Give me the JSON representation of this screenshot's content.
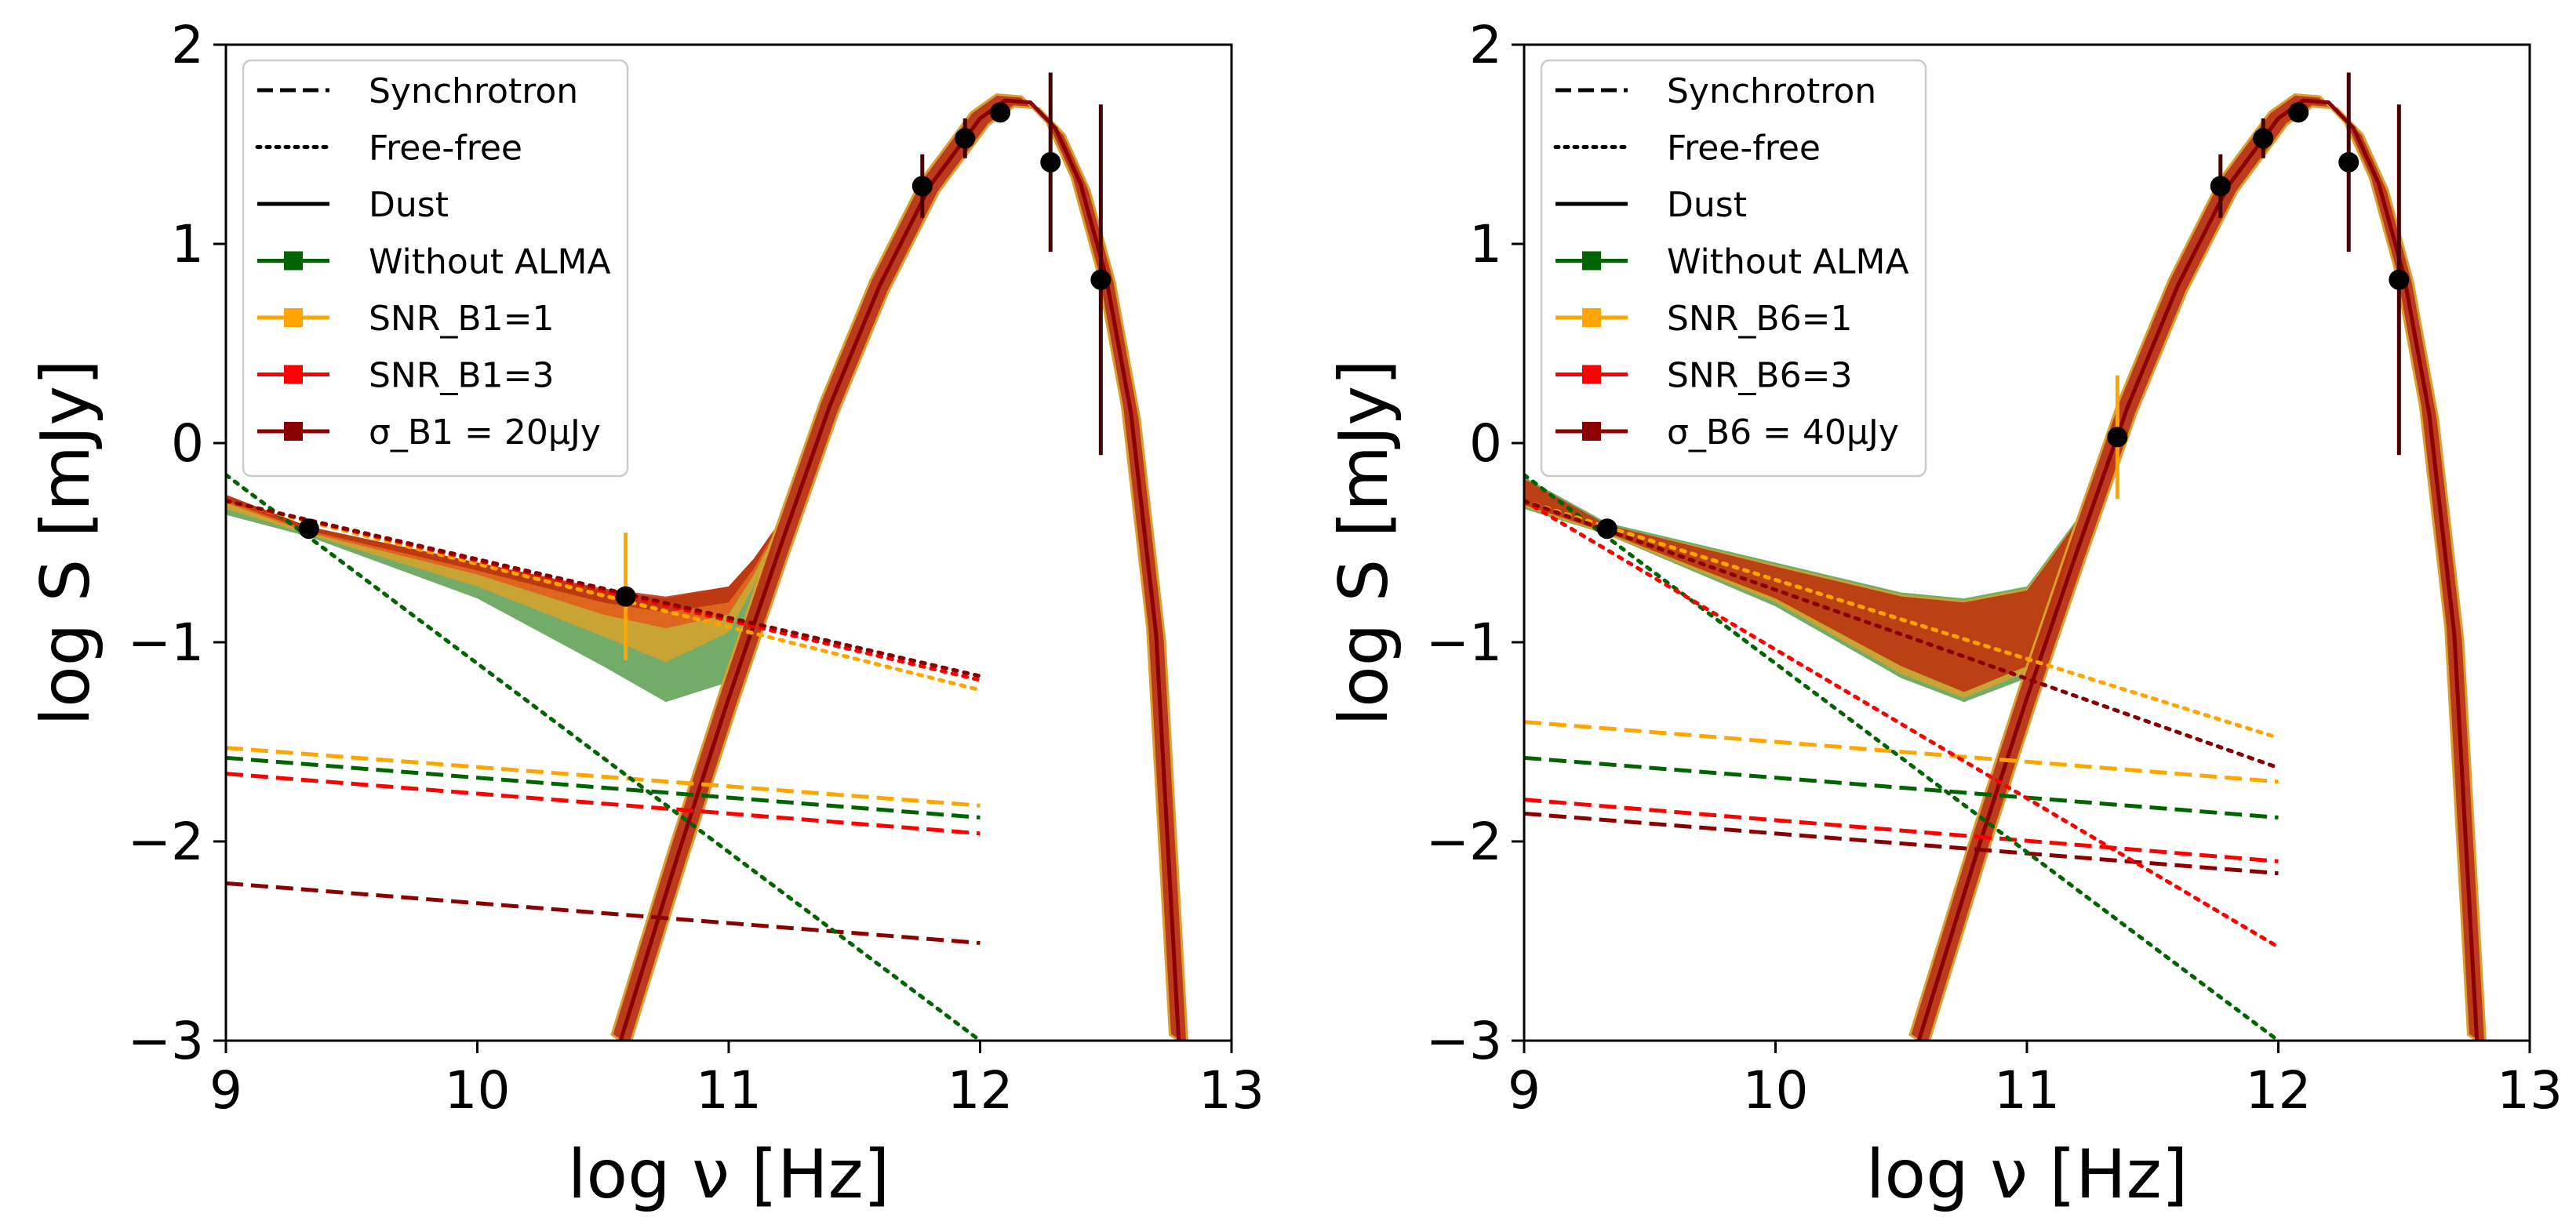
{
  "chart_data": [
    {
      "type": "line",
      "panel": "left",
      "xlabel": "log ν [Hz]",
      "ylabel": "log  S [mJy]",
      "xlim": [
        9,
        13
      ],
      "ylim": [
        -3,
        2
      ],
      "xticks": [
        9,
        10,
        11,
        12,
        13
      ],
      "yticks": [
        -3,
        -2,
        -1,
        0,
        1,
        2
      ],
      "xtick_labels": [
        "9",
        "10",
        "11",
        "12",
        "13"
      ],
      "ytick_labels": [
        "−3",
        "−2",
        "−1",
        "0",
        "1",
        "2"
      ],
      "legend_placement": "upper-left",
      "legend": [
        {
          "label": "Synchrotron",
          "style": "dashed",
          "color": "#000000",
          "marker": false
        },
        {
          "label": "Free-free",
          "style": "dotted",
          "color": "#000000",
          "marker": false
        },
        {
          "label": "Dust",
          "style": "solid",
          "color": "#000000",
          "marker": false
        },
        {
          "label": "Without ALMA",
          "style": "solid",
          "color": "#006400",
          "marker": true
        },
        {
          "label": "SNR_B1=1",
          "style": "solid",
          "color": "#FFA500",
          "marker": true
        },
        {
          "label": "SNR_B1=3",
          "style": "solid",
          "color": "#FF0000",
          "marker": true
        },
        {
          "label": "σ_B1 = 20μJy",
          "style": "solid",
          "color": "#8B0000",
          "marker": true
        }
      ],
      "synchrotron": [
        {
          "name": "Without ALMA",
          "color": "#006400",
          "x": [
            9,
            12
          ],
          "y": [
            -1.58,
            -1.88
          ]
        },
        {
          "name": "SNR_B1=1",
          "color": "#FFA500",
          "x": [
            9,
            12
          ],
          "y": [
            -1.53,
            -1.82
          ]
        },
        {
          "name": "SNR_B1=3",
          "color": "#FF0000",
          "x": [
            9,
            12
          ],
          "y": [
            -1.66,
            -1.96
          ]
        },
        {
          "name": "σ_B1 = 20μJy",
          "color": "#8B0000",
          "x": [
            9,
            12
          ],
          "y": [
            -2.21,
            -2.51
          ]
        }
      ],
      "free_free": [
        {
          "name": "Without ALMA",
          "color": "#006400",
          "x": [
            9,
            12
          ],
          "y": [
            -0.16,
            -3.0
          ]
        },
        {
          "name": "SNR_B1=1",
          "color": "#FFA500",
          "x": [
            9,
            12
          ],
          "y": [
            -0.29,
            -1.24
          ]
        },
        {
          "name": "SNR_B1=3",
          "color": "#FF0000",
          "x": [
            9,
            12
          ],
          "y": [
            -0.29,
            -1.19
          ]
        },
        {
          "name": "σ_B1 = 20μJy",
          "color": "#8B0000",
          "x": [
            9,
            12
          ],
          "y": [
            -0.29,
            -1.17
          ]
        }
      ],
      "dust": {
        "x": [
          10.57,
          10.8,
          11.0,
          11.2,
          11.4,
          11.6,
          11.8,
          12.0,
          12.1,
          12.2,
          12.3,
          12.4,
          12.5,
          12.6,
          12.7,
          12.79
        ],
        "y": [
          -3.0,
          -2.06,
          -1.28,
          -0.54,
          0.18,
          0.79,
          1.29,
          1.63,
          1.72,
          1.71,
          1.58,
          1.3,
          0.84,
          0.15,
          -0.96,
          -3.0
        ],
        "color": "#8B0000"
      },
      "total_bands": [
        {
          "name": "Without ALMA",
          "color": "#5a9e4e",
          "x": [
            9.0,
            9.33,
            10.0,
            10.5,
            10.75,
            11.0,
            11.1,
            11.2
          ],
          "upper": [
            -0.26,
            -0.42,
            -0.6,
            -0.74,
            -0.78,
            -0.72,
            -0.58,
            -0.4
          ],
          "lower": [
            -0.36,
            -0.47,
            -0.78,
            -1.12,
            -1.3,
            -1.2,
            -0.9,
            -0.44
          ]
        },
        {
          "name": "SNR_B1=1",
          "color": "#d6a22b",
          "x": [
            9.0,
            9.33,
            10.0,
            10.5,
            10.75,
            11.0,
            11.1,
            11.2
          ],
          "upper": [
            -0.26,
            -0.42,
            -0.6,
            -0.74,
            -0.78,
            -0.72,
            -0.58,
            -0.4
          ],
          "lower": [
            -0.33,
            -0.46,
            -0.72,
            -0.97,
            -1.1,
            -0.95,
            -0.72,
            -0.43
          ]
        },
        {
          "name": "SNR_B1=3",
          "color": "#e05a1a",
          "x": [
            9.0,
            9.33,
            10.0,
            10.5,
            10.75,
            11.0,
            11.1,
            11.2
          ],
          "upper": [
            -0.26,
            -0.42,
            -0.6,
            -0.74,
            -0.78,
            -0.72,
            -0.58,
            -0.4
          ],
          "lower": [
            -0.3,
            -0.45,
            -0.66,
            -0.86,
            -0.93,
            -0.86,
            -0.66,
            -0.42
          ]
        },
        {
          "name": "σ_B1 = 20μJy",
          "color": "#b83010",
          "x": [
            9.0,
            9.33,
            10.0,
            10.5,
            10.75,
            11.0,
            11.1,
            11.2
          ],
          "upper": [
            -0.26,
            -0.42,
            -0.6,
            -0.73,
            -0.77,
            -0.72,
            -0.58,
            -0.4
          ],
          "lower": [
            -0.29,
            -0.44,
            -0.64,
            -0.8,
            -0.85,
            -0.8,
            -0.63,
            -0.41
          ]
        }
      ],
      "dust_band": {
        "color": "#b83010",
        "half_width": 0.1
      },
      "data_points": [
        {
          "x": 9.33,
          "y": -0.43,
          "yerr": 0.02,
          "err_color": "#000000"
        },
        {
          "x": 10.59,
          "y": -0.77,
          "yerr": 0.32,
          "err_color": "#FFA500"
        },
        {
          "x": 11.77,
          "y": 1.29,
          "yerr": 0.16,
          "err_color": "#4a0000"
        },
        {
          "x": 11.94,
          "y": 1.53,
          "yerr": 0.1,
          "err_color": "#4a0000"
        },
        {
          "x": 12.08,
          "y": 1.66,
          "yerr": 0.04,
          "err_color": "#4a0000"
        },
        {
          "x": 12.28,
          "y": 1.41,
          "yerr": 0.45,
          "err_color": "#4a0000"
        },
        {
          "x": 12.48,
          "y": 0.82,
          "yerr": 0.88,
          "err_color": "#4a0000"
        }
      ]
    },
    {
      "type": "line",
      "panel": "right",
      "xlabel": "log ν [Hz]",
      "ylabel": "log  S [mJy]",
      "xlim": [
        9,
        13
      ],
      "ylim": [
        -3,
        2
      ],
      "xticks": [
        9,
        10,
        11,
        12,
        13
      ],
      "yticks": [
        -3,
        -2,
        -1,
        0,
        1,
        2
      ],
      "xtick_labels": [
        "9",
        "10",
        "11",
        "12",
        "13"
      ],
      "ytick_labels": [
        "−3",
        "−2",
        "−1",
        "0",
        "1",
        "2"
      ],
      "legend_placement": "upper-left",
      "legend": [
        {
          "label": "Synchrotron",
          "style": "dashed",
          "color": "#000000",
          "marker": false
        },
        {
          "label": "Free-free",
          "style": "dotted",
          "color": "#000000",
          "marker": false
        },
        {
          "label": "Dust",
          "style": "solid",
          "color": "#000000",
          "marker": false
        },
        {
          "label": "Without ALMA",
          "style": "solid",
          "color": "#006400",
          "marker": true
        },
        {
          "label": "SNR_B6=1",
          "style": "solid",
          "color": "#FFA500",
          "marker": true
        },
        {
          "label": "SNR_B6=3",
          "style": "solid",
          "color": "#FF0000",
          "marker": true
        },
        {
          "label": "σ_B6 = 40μJy",
          "style": "solid",
          "color": "#8B0000",
          "marker": true
        }
      ],
      "synchrotron": [
        {
          "name": "Without ALMA",
          "color": "#006400",
          "x": [
            9,
            12
          ],
          "y": [
            -1.58,
            -1.88
          ]
        },
        {
          "name": "SNR_B6=1",
          "color": "#FFA500",
          "x": [
            9,
            12
          ],
          "y": [
            -1.4,
            -1.7
          ]
        },
        {
          "name": "SNR_B6=3",
          "color": "#FF0000",
          "x": [
            9,
            12
          ],
          "y": [
            -1.79,
            -2.1
          ]
        },
        {
          "name": "σ_B6 = 40μJy",
          "color": "#8B0000",
          "x": [
            9,
            12
          ],
          "y": [
            -1.86,
            -2.16
          ]
        }
      ],
      "free_free": [
        {
          "name": "Without ALMA",
          "color": "#006400",
          "x": [
            9,
            12
          ],
          "y": [
            -0.16,
            -3.0
          ]
        },
        {
          "name": "SNR_B6=1",
          "color": "#FFA500",
          "x": [
            9,
            12
          ],
          "y": [
            -0.29,
            -1.48
          ]
        },
        {
          "name": "SNR_B6=3",
          "color": "#FF0000",
          "x": [
            9,
            12
          ],
          "y": [
            -0.29,
            -2.53
          ]
        },
        {
          "name": "σ_B6 = 40μJy",
          "color": "#8B0000",
          "x": [
            9,
            12
          ],
          "y": [
            -0.29,
            -1.63
          ]
        }
      ],
      "dust": {
        "x": [
          10.57,
          10.8,
          11.0,
          11.2,
          11.4,
          11.6,
          11.8,
          12.0,
          12.1,
          12.2,
          12.3,
          12.4,
          12.5,
          12.6,
          12.7,
          12.79
        ],
        "y": [
          -3.0,
          -2.06,
          -1.28,
          -0.54,
          0.18,
          0.79,
          1.29,
          1.63,
          1.72,
          1.71,
          1.58,
          1.3,
          0.84,
          0.15,
          -0.96,
          -3.0
        ],
        "color": "#8B0000"
      },
      "total_bands": [
        {
          "name": "Without ALMA",
          "color": "#5a9e4e",
          "x": [
            9.0,
            9.33,
            10.0,
            10.5,
            10.75,
            11.0,
            11.1,
            11.2
          ],
          "upper": [
            -0.17,
            -0.4,
            -0.6,
            -0.75,
            -0.78,
            -0.72,
            -0.55,
            -0.38
          ],
          "lower": [
            -0.33,
            -0.46,
            -0.82,
            -1.18,
            -1.3,
            -1.18,
            -0.88,
            -0.42
          ]
        },
        {
          "name": "SNR_B6=1",
          "color": "#d6a22b",
          "x": [
            9.0,
            9.33,
            10.0,
            10.5,
            10.75,
            11.0,
            11.1,
            11.2
          ],
          "upper": [
            -0.18,
            -0.41,
            -0.61,
            -0.76,
            -0.79,
            -0.73,
            -0.56,
            -0.39
          ],
          "lower": [
            -0.32,
            -0.46,
            -0.8,
            -1.16,
            -1.28,
            -1.15,
            -0.86,
            -0.41
          ]
        },
        {
          "name": "σ_B6 = 40μJy",
          "color": "#b83010",
          "x": [
            9.0,
            9.33,
            10.0,
            10.5,
            10.75,
            11.0,
            11.1,
            11.2
          ],
          "upper": [
            -0.18,
            -0.41,
            -0.62,
            -0.77,
            -0.8,
            -0.74,
            -0.57,
            -0.39
          ],
          "lower": [
            -0.31,
            -0.45,
            -0.78,
            -1.12,
            -1.25,
            -1.12,
            -0.84,
            -0.41
          ]
        }
      ],
      "dust_band": {
        "color": "#b83010",
        "half_width": 0.1
      },
      "data_points": [
        {
          "x": 9.33,
          "y": -0.43,
          "yerr": 0.02,
          "err_color": "#000000"
        },
        {
          "x": 11.36,
          "y": 0.03,
          "yerr": 0.31,
          "err_color": "#FFA500"
        },
        {
          "x": 11.77,
          "y": 1.29,
          "yerr": 0.16,
          "err_color": "#4a0000"
        },
        {
          "x": 11.94,
          "y": 1.53,
          "yerr": 0.1,
          "err_color": "#4a0000"
        },
        {
          "x": 12.08,
          "y": 1.66,
          "yerr": 0.04,
          "err_color": "#4a0000"
        },
        {
          "x": 12.28,
          "y": 1.41,
          "yerr": 0.45,
          "err_color": "#4a0000"
        },
        {
          "x": 12.48,
          "y": 0.82,
          "yerr": 0.88,
          "err_color": "#4a0000"
        }
      ]
    }
  ]
}
